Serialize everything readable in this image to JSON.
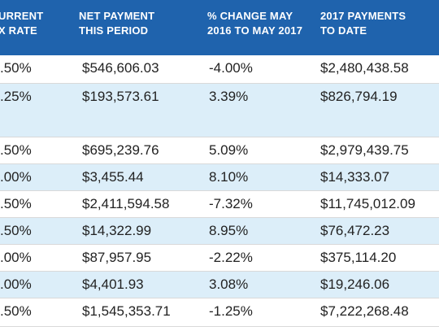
{
  "table": {
    "headers": [
      {
        "line1": "URRENT",
        "line2": "X RATE"
      },
      {
        "line1": "NET PAYMENT",
        "line2": "THIS PERIOD"
      },
      {
        "line1": "% CHANGE MAY",
        "line2": "2016 TO MAY 2017"
      },
      {
        "line1": "2017 PAYMENTS",
        "line2": "TO DATE"
      }
    ],
    "rows": [
      {
        "rate": ".50%",
        "net": "$546,606.03",
        "change": "-4.00%",
        "ytd": "$2,480,438.58"
      },
      {
        "rate": ".25%",
        "net": "$193,573.61",
        "change": "3.39%",
        "ytd": "$826,794.19"
      },
      {
        "rate": ".50%",
        "net": "$695,239.76",
        "change": "5.09%",
        "ytd": "$2,979,439.75"
      },
      {
        "rate": ".00%",
        "net": "$3,455.44",
        "change": "8.10%",
        "ytd": "$14,333.07"
      },
      {
        "rate": ".50%",
        "net": "$2,411,594.58",
        "change": "-7.32%",
        "ytd": "$11,745,012.09"
      },
      {
        "rate": ".50%",
        "net": "$14,322.99",
        "change": "8.95%",
        "ytd": "$76,472.23"
      },
      {
        "rate": ".00%",
        "net": "$87,957.95",
        "change": "-2.22%",
        "ytd": "$375,114.20"
      },
      {
        "rate": ".00%",
        "net": "$4,401.93",
        "change": "3.08%",
        "ytd": "$19,246.06"
      },
      {
        "rate": ".50%",
        "net": "$1,545,353.71",
        "change": "-1.25%",
        "ytd": "$7,222,268.48"
      }
    ]
  },
  "colors": {
    "header_bg": "#1f63ad",
    "row_shade": "#dceef9",
    "text": "#222222"
  }
}
